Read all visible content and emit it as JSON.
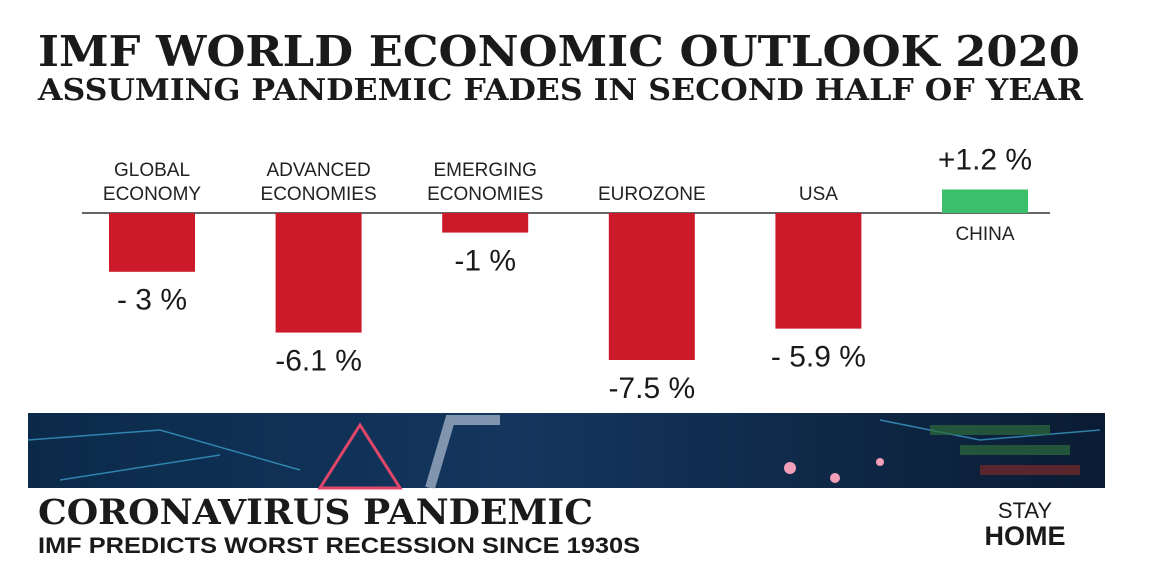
{
  "chart_data": {
    "type": "bar",
    "title": "IMF WORLD ECONOMIC OUTLOOK 2020",
    "subtitle": "ASSUMING PANDEMIC FADES IN SECOND HALF OF YEAR",
    "categories": [
      "GLOBAL ECONOMY",
      "ADVANCED ECONOMIES",
      "EMERGING ECONOMIES",
      "EUROZONE",
      "USA",
      "CHINA"
    ],
    "values": [
      -3,
      -6.1,
      -1,
      -7.5,
      -5.9,
      1.2
    ],
    "value_labels": [
      "- 3 %",
      "-6.1 %",
      "-1 %",
      "-7.5 %",
      "- 5.9 %",
      "+1.2 %"
    ],
    "colors": [
      "#cc1a2b",
      "#cc1a2b",
      "#cc1a2b",
      "#cc1a2b",
      "#cc1a2b",
      "#3cbf6a"
    ]
  },
  "banner": {
    "headline": "CORONAVIRUS PANDEMIC",
    "subline": "IMF PREDICTS WORST RECESSION SINCE 1930S",
    "badge_top": "STAY",
    "badge_bottom": "HOME"
  }
}
